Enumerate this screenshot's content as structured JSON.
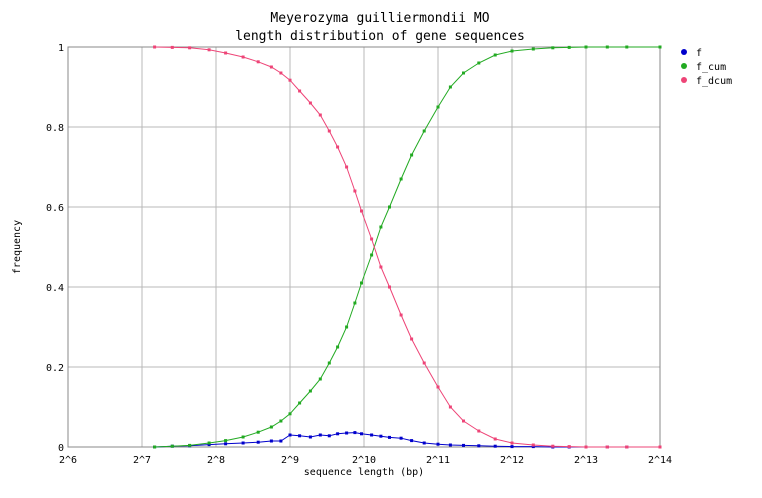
{
  "chart_data": {
    "type": "line",
    "title": "Meyerozyma guilliermondii MO",
    "subtitle": "length distribution of gene sequences",
    "xlabel": "sequence length (bp)",
    "ylabel": "frequency",
    "x_scale": "log2",
    "xlim": [
      64,
      16384
    ],
    "ylim": [
      0,
      1
    ],
    "x_ticks": [
      "2^6",
      "2^7",
      "2^8",
      "2^9",
      "2^10",
      "2^11",
      "2^12",
      "2^13",
      "2^14"
    ],
    "y_ticks": [
      "0",
      "0.2",
      "0.4",
      "0.6",
      "0.8",
      "1"
    ],
    "grid": true,
    "legend_position": "top-right",
    "series": [
      {
        "name": "f",
        "color": "#0000cc",
        "x": [
          144,
          170,
          200,
          240,
          280,
          330,
          380,
          430,
          470,
          512,
          560,
          620,
          680,
          740,
          800,
          870,
          940,
          1000,
          1100,
          1200,
          1300,
          1450,
          1600,
          1800,
          2048,
          2300,
          2600,
          3000,
          3500,
          4096,
          5000,
          6000,
          7000,
          8192,
          10000,
          12000,
          16384
        ],
        "y": [
          0.0,
          0.002,
          0.003,
          0.006,
          0.008,
          0.01,
          0.012,
          0.015,
          0.015,
          0.03,
          0.028,
          0.025,
          0.03,
          0.028,
          0.033,
          0.035,
          0.036,
          0.033,
          0.03,
          0.027,
          0.024,
          0.022,
          0.016,
          0.01,
          0.007,
          0.005,
          0.004,
          0.003,
          0.002,
          0.001,
          0.001,
          0.0,
          0.0,
          0.0,
          0.0,
          0.0,
          0.0
        ]
      },
      {
        "name": "f_cum",
        "color": "#22aa22",
        "x": [
          144,
          170,
          200,
          240,
          280,
          330,
          380,
          430,
          470,
          512,
          560,
          620,
          680,
          740,
          800,
          870,
          940,
          1000,
          1100,
          1200,
          1300,
          1450,
          1600,
          1800,
          2048,
          2300,
          2600,
          3000,
          3500,
          4096,
          5000,
          6000,
          7000,
          8192,
          10000,
          12000,
          16384
        ],
        "y": [
          0.0,
          0.002,
          0.004,
          0.01,
          0.016,
          0.025,
          0.037,
          0.05,
          0.065,
          0.083,
          0.11,
          0.14,
          0.17,
          0.21,
          0.25,
          0.3,
          0.36,
          0.41,
          0.48,
          0.55,
          0.6,
          0.67,
          0.73,
          0.79,
          0.85,
          0.9,
          0.935,
          0.96,
          0.98,
          0.99,
          0.995,
          0.998,
          0.999,
          1.0,
          1.0,
          1.0,
          1.0
        ]
      },
      {
        "name": "f_dcum",
        "color": "#ee4477",
        "x": [
          144,
          170,
          200,
          240,
          280,
          330,
          380,
          430,
          470,
          512,
          560,
          620,
          680,
          740,
          800,
          870,
          940,
          1000,
          1100,
          1200,
          1300,
          1450,
          1600,
          1800,
          2048,
          2300,
          2600,
          3000,
          3500,
          4096,
          5000,
          6000,
          7000,
          8192,
          10000,
          12000,
          16384
        ],
        "y": [
          1.0,
          0.999,
          0.998,
          0.993,
          0.985,
          0.975,
          0.963,
          0.95,
          0.935,
          0.917,
          0.89,
          0.86,
          0.83,
          0.79,
          0.75,
          0.7,
          0.64,
          0.59,
          0.52,
          0.45,
          0.4,
          0.33,
          0.27,
          0.21,
          0.15,
          0.1,
          0.065,
          0.04,
          0.02,
          0.01,
          0.005,
          0.002,
          0.001,
          0.0,
          0.0,
          0.0,
          0.0
        ]
      }
    ]
  }
}
